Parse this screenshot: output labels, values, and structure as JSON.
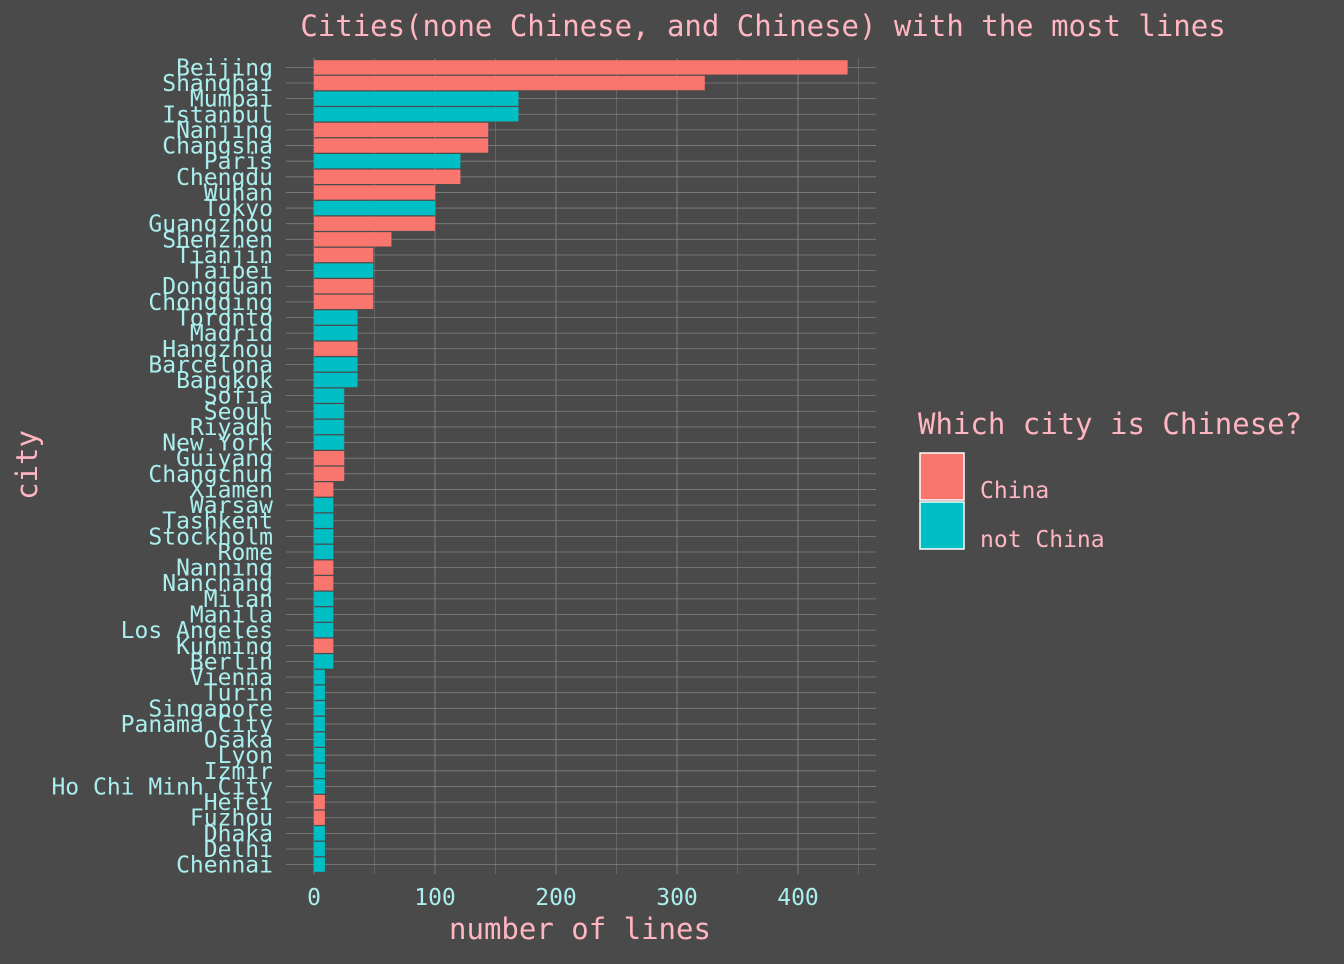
{
  "colors": {
    "background": "#4a4a4a",
    "grid": "#808080",
    "title_text": "#ffb6c1",
    "tick_text": "#aaeeee",
    "china": "#f8766d",
    "not_china": "#00bfc4"
  },
  "chart_data": {
    "type": "bar",
    "orientation": "horizontal",
    "title": "Cities(none Chinese, and Chinese) with the most lines",
    "xlabel": "number of lines",
    "ylabel": "city",
    "xlim": [
      -23,
      460
    ],
    "x_ticks": [
      0,
      100,
      200,
      300,
      400
    ],
    "grid": true,
    "legend": {
      "title": "Which city is Chinese?",
      "position": "right",
      "entries": [
        {
          "label": "China",
          "key": "china"
        },
        {
          "label": "not China",
          "key": "not_china"
        }
      ]
    },
    "bars": [
      {
        "city": "Beijing",
        "value": 441,
        "group": "china"
      },
      {
        "city": "Shanghai",
        "value": 323,
        "group": "china"
      },
      {
        "city": "Mumbai",
        "value": 169,
        "group": "not_china"
      },
      {
        "city": "Istanbul",
        "value": 169,
        "group": "not_china"
      },
      {
        "city": "Nanjing",
        "value": 144,
        "group": "china"
      },
      {
        "city": "Changsha",
        "value": 144,
        "group": "china"
      },
      {
        "city": "Paris",
        "value": 121,
        "group": "not_china"
      },
      {
        "city": "Chengdu",
        "value": 121,
        "group": "china"
      },
      {
        "city": "Wuhan",
        "value": 100,
        "group": "china"
      },
      {
        "city": "Tokyo",
        "value": 100,
        "group": "not_china"
      },
      {
        "city": "Guangzhou",
        "value": 100,
        "group": "china"
      },
      {
        "city": "Shenzhen",
        "value": 64,
        "group": "china"
      },
      {
        "city": "Tianjin",
        "value": 49,
        "group": "china"
      },
      {
        "city": "Taipei",
        "value": 49,
        "group": "not_china"
      },
      {
        "city": "Dongguan",
        "value": 49,
        "group": "china"
      },
      {
        "city": "Chongqing",
        "value": 49,
        "group": "china"
      },
      {
        "city": "Toronto",
        "value": 36,
        "group": "not_china"
      },
      {
        "city": "Madrid",
        "value": 36,
        "group": "not_china"
      },
      {
        "city": "Hangzhou",
        "value": 36,
        "group": "china"
      },
      {
        "city": "Barcelona",
        "value": 36,
        "group": "not_china"
      },
      {
        "city": "Bangkok",
        "value": 36,
        "group": "not_china"
      },
      {
        "city": "Sofia",
        "value": 25,
        "group": "not_china"
      },
      {
        "city": "Seoul",
        "value": 25,
        "group": "not_china"
      },
      {
        "city": "Riyadh",
        "value": 25,
        "group": "not_china"
      },
      {
        "city": "New York",
        "value": 25,
        "group": "not_china"
      },
      {
        "city": "Guiyang",
        "value": 25,
        "group": "china"
      },
      {
        "city": "Changchun",
        "value": 25,
        "group": "china"
      },
      {
        "city": "Xiamen",
        "value": 16,
        "group": "china"
      },
      {
        "city": "Warsaw",
        "value": 16,
        "group": "not_china"
      },
      {
        "city": "Tashkent",
        "value": 16,
        "group": "not_china"
      },
      {
        "city": "Stockholm",
        "value": 16,
        "group": "not_china"
      },
      {
        "city": "Rome",
        "value": 16,
        "group": "not_china"
      },
      {
        "city": "Nanning",
        "value": 16,
        "group": "china"
      },
      {
        "city": "Nanchang",
        "value": 16,
        "group": "china"
      },
      {
        "city": "Milan",
        "value": 16,
        "group": "not_china"
      },
      {
        "city": "Manila",
        "value": 16,
        "group": "not_china"
      },
      {
        "city": "Los Angeles",
        "value": 16,
        "group": "not_china"
      },
      {
        "city": "Kunming",
        "value": 16,
        "group": "china"
      },
      {
        "city": "Berlin",
        "value": 16,
        "group": "not_china"
      },
      {
        "city": "Vienna",
        "value": 9,
        "group": "not_china"
      },
      {
        "city": "Turin",
        "value": 9,
        "group": "not_china"
      },
      {
        "city": "Singapore",
        "value": 9,
        "group": "not_china"
      },
      {
        "city": "Panama City",
        "value": 9,
        "group": "not_china"
      },
      {
        "city": "Osaka",
        "value": 9,
        "group": "not_china"
      },
      {
        "city": "Lyon",
        "value": 9,
        "group": "not_china"
      },
      {
        "city": "Izmir",
        "value": 9,
        "group": "not_china"
      },
      {
        "city": "Ho Chi Minh City",
        "value": 9,
        "group": "not_china"
      },
      {
        "city": "Hefei",
        "value": 9,
        "group": "china"
      },
      {
        "city": "Fuzhou",
        "value": 9,
        "group": "china"
      },
      {
        "city": "Dhaka",
        "value": 9,
        "group": "not_china"
      },
      {
        "city": "Delhi",
        "value": 9,
        "group": "not_china"
      },
      {
        "city": "Chennai",
        "value": 9,
        "group": "not_china"
      }
    ]
  }
}
